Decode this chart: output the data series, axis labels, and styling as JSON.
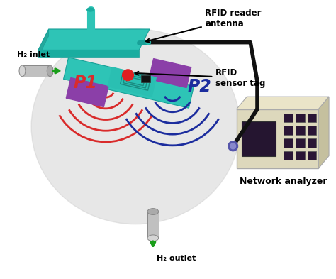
{
  "bg_color": "#ffffff",
  "antenna_color": "#2ec4b6",
  "antenna_top_color": "#1aada0",
  "antenna_side_color": "#25a89b",
  "analyzer_body_color": "#ddd8bc",
  "analyzer_side_color": "#c5c09e",
  "analyzer_screen_color": "#251530",
  "analyzer_btn_color": "#2a1535",
  "sphere_color": "#d0d0d0",
  "tag_teal": "#2ec4b6",
  "tag_purple": "#8b3fa8",
  "tag_stripe": "#9040b8",
  "p1_color": "#d92b2b",
  "p2_color": "#1c2d9e",
  "cable_color": "#111111",
  "green_arrow": "#1a9e1a",
  "inlet_color": "#bbbbbb",
  "outlet_color": "#4a9a4a",
  "label_rfid_antenna": "RFID reader\nantenna",
  "label_network_analyzer": "Network analyzer",
  "label_rfid_sensor_tag": "RFID\nsensor tag",
  "label_p1": "P1",
  "label_p2": "P2",
  "label_h2_inlet": "H₂ inlet",
  "label_h2_outlet": "H₂ outlet"
}
